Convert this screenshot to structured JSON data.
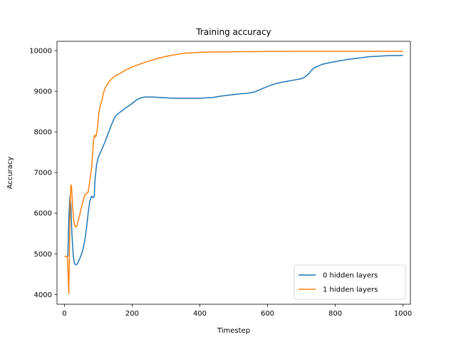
{
  "chart_data": {
    "type": "line",
    "title": "Training accuracy",
    "xlabel": "Timestep",
    "ylabel": "Accuracy",
    "xlim": [
      -22,
      1022
    ],
    "ylim": [
      3760,
      10230
    ],
    "xticks": [
      0,
      200,
      400,
      600,
      800,
      1000
    ],
    "yticks": [
      4000,
      5000,
      6000,
      7000,
      8000,
      9000,
      10000
    ],
    "grid": false,
    "legend_position": "lower-right",
    "series": [
      {
        "name": "0 hidden layers",
        "color": "#1f77b4",
        "points": [
          [
            0,
            4940
          ],
          [
            5,
            4940
          ],
          [
            10,
            4940
          ],
          [
            13,
            5900
          ],
          [
            16,
            6400
          ],
          [
            19,
            6200
          ],
          [
            22,
            5500
          ],
          [
            26,
            4950
          ],
          [
            30,
            4750
          ],
          [
            35,
            4730
          ],
          [
            40,
            4780
          ],
          [
            45,
            4880
          ],
          [
            50,
            4980
          ],
          [
            55,
            5120
          ],
          [
            60,
            5320
          ],
          [
            65,
            5620
          ],
          [
            70,
            6000
          ],
          [
            75,
            6300
          ],
          [
            80,
            6420
          ],
          [
            85,
            6380
          ],
          [
            88,
            6420
          ],
          [
            90,
            6800
          ],
          [
            95,
            7200
          ],
          [
            100,
            7380
          ],
          [
            110,
            7560
          ],
          [
            120,
            7760
          ],
          [
            130,
            7980
          ],
          [
            140,
            8200
          ],
          [
            150,
            8380
          ],
          [
            160,
            8460
          ],
          [
            170,
            8520
          ],
          [
            180,
            8590
          ],
          [
            190,
            8640
          ],
          [
            200,
            8700
          ],
          [
            210,
            8770
          ],
          [
            220,
            8820
          ],
          [
            230,
            8850
          ],
          [
            240,
            8860
          ],
          [
            250,
            8860
          ],
          [
            260,
            8860
          ],
          [
            280,
            8850
          ],
          [
            300,
            8840
          ],
          [
            320,
            8830
          ],
          [
            340,
            8830
          ],
          [
            360,
            8830
          ],
          [
            380,
            8830
          ],
          [
            400,
            8830
          ],
          [
            420,
            8840
          ],
          [
            440,
            8850
          ],
          [
            460,
            8880
          ],
          [
            480,
            8900
          ],
          [
            500,
            8920
          ],
          [
            520,
            8940
          ],
          [
            540,
            8950
          ],
          [
            560,
            8980
          ],
          [
            580,
            9050
          ],
          [
            600,
            9120
          ],
          [
            620,
            9180
          ],
          [
            640,
            9220
          ],
          [
            660,
            9250
          ],
          [
            680,
            9280
          ],
          [
            700,
            9310
          ],
          [
            710,
            9350
          ],
          [
            720,
            9420
          ],
          [
            730,
            9520
          ],
          [
            740,
            9590
          ],
          [
            750,
            9620
          ],
          [
            760,
            9660
          ],
          [
            780,
            9700
          ],
          [
            800,
            9730
          ],
          [
            820,
            9760
          ],
          [
            840,
            9790
          ],
          [
            860,
            9810
          ],
          [
            880,
            9830
          ],
          [
            900,
            9850
          ],
          [
            920,
            9860
          ],
          [
            940,
            9870
          ],
          [
            960,
            9880
          ],
          [
            980,
            9880
          ],
          [
            1000,
            9885
          ]
        ]
      },
      {
        "name": "1 hidden layers",
        "color": "#ff7f0e",
        "points": [
          [
            0,
            4940
          ],
          [
            5,
            4940
          ],
          [
            8,
            4940
          ],
          [
            10,
            4700
          ],
          [
            13,
            4020
          ],
          [
            15,
            5200
          ],
          [
            17,
            6300
          ],
          [
            19,
            6700
          ],
          [
            21,
            6650
          ],
          [
            24,
            6200
          ],
          [
            27,
            5850
          ],
          [
            30,
            5700
          ],
          [
            33,
            5660
          ],
          [
            37,
            5700
          ],
          [
            40,
            5800
          ],
          [
            45,
            5950
          ],
          [
            50,
            6150
          ],
          [
            55,
            6300
          ],
          [
            60,
            6450
          ],
          [
            65,
            6480
          ],
          [
            70,
            6520
          ],
          [
            75,
            6800
          ],
          [
            80,
            7100
          ],
          [
            83,
            7450
          ],
          [
            86,
            7800
          ],
          [
            89,
            7920
          ],
          [
            92,
            7880
          ],
          [
            95,
            7950
          ],
          [
            98,
            8150
          ],
          [
            102,
            8500
          ],
          [
            106,
            8650
          ],
          [
            110,
            8750
          ],
          [
            115,
            8950
          ],
          [
            120,
            9080
          ],
          [
            130,
            9220
          ],
          [
            140,
            9310
          ],
          [
            150,
            9380
          ],
          [
            160,
            9420
          ],
          [
            170,
            9470
          ],
          [
            180,
            9520
          ],
          [
            190,
            9560
          ],
          [
            200,
            9600
          ],
          [
            220,
            9660
          ],
          [
            240,
            9720
          ],
          [
            260,
            9770
          ],
          [
            280,
            9820
          ],
          [
            300,
            9860
          ],
          [
            320,
            9890
          ],
          [
            340,
            9920
          ],
          [
            360,
            9940
          ],
          [
            380,
            9950
          ],
          [
            400,
            9960
          ],
          [
            440,
            9970
          ],
          [
            480,
            9970
          ],
          [
            520,
            9975
          ],
          [
            560,
            9975
          ],
          [
            600,
            9980
          ],
          [
            640,
            9980
          ],
          [
            680,
            9985
          ],
          [
            720,
            9985
          ],
          [
            760,
            9985
          ],
          [
            800,
            9985
          ],
          [
            840,
            9985
          ],
          [
            880,
            9985
          ],
          [
            920,
            9985
          ],
          [
            960,
            9985
          ],
          [
            1000,
            9985
          ]
        ]
      }
    ]
  }
}
